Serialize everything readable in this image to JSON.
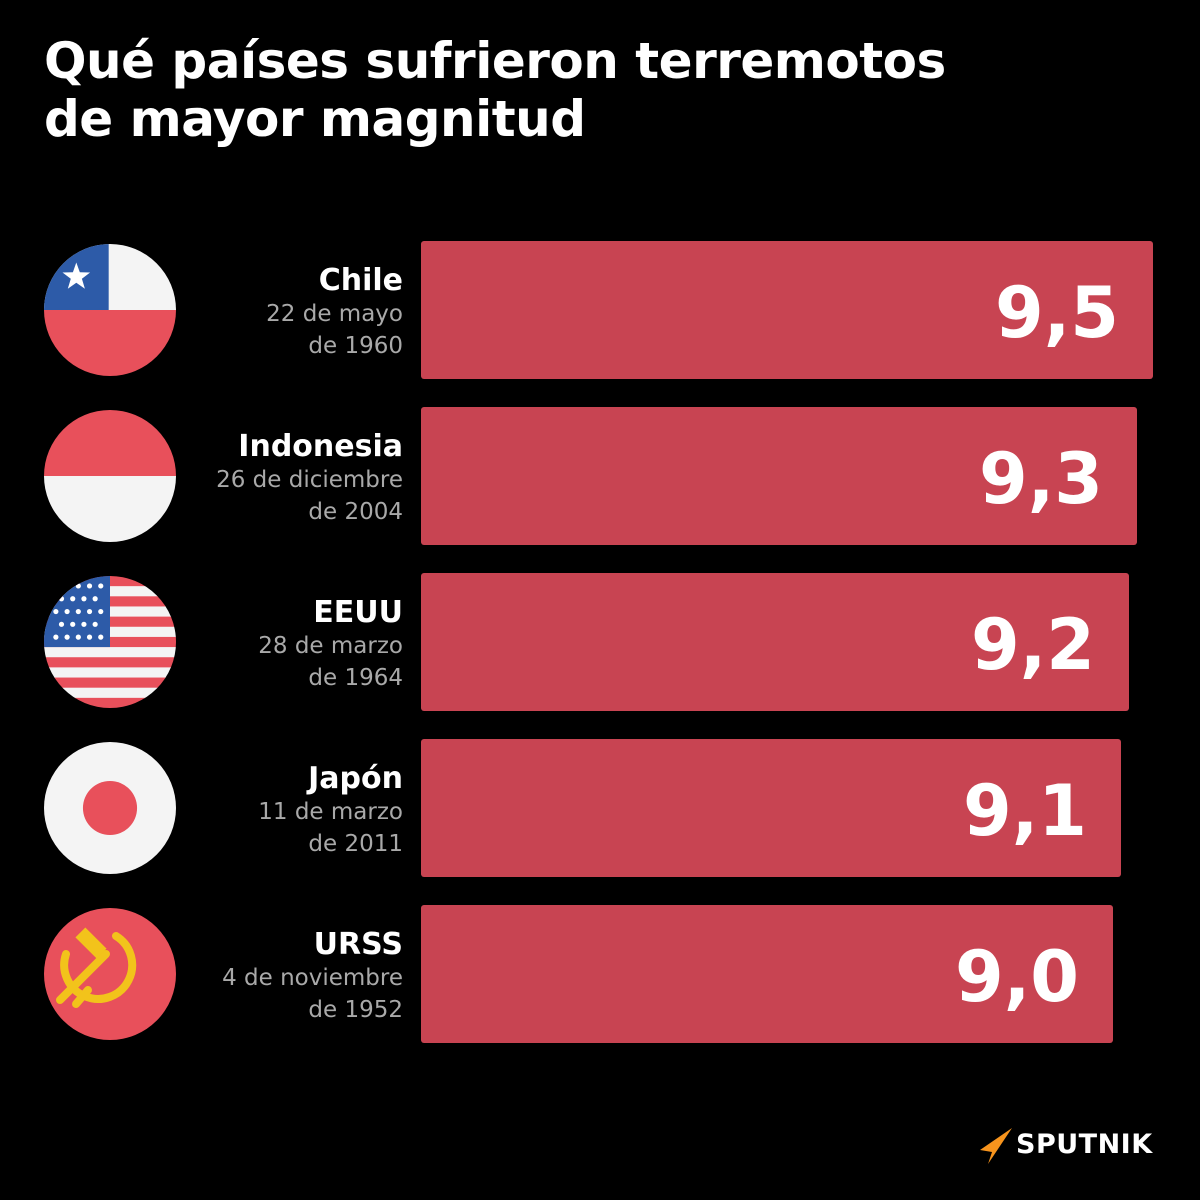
{
  "title": {
    "line1": "Qué países sufrieron terremotos",
    "line2": "de mayor magnitud"
  },
  "brand": {
    "name": "SPUTNIK",
    "accent_color": "#f7941d"
  },
  "colors": {
    "background": "#000000",
    "bar": "#c84452",
    "value_text": "#ffffff",
    "date_text": "#a9a9a9"
  },
  "chart_data": {
    "type": "bar",
    "orientation": "horizontal",
    "categories": [
      "Chile",
      "Indonesia",
      "EEUU",
      "Japón",
      "URSS"
    ],
    "values": [
      9.5,
      9.3,
      9.2,
      9.1,
      9.0
    ],
    "value_labels": [
      "9,5",
      "9,3",
      "9,2",
      "9,1",
      "9,0"
    ],
    "dates": [
      [
        "22 de mayo",
        "de 1960"
      ],
      [
        "26 de diciembre",
        "de 2004"
      ],
      [
        "28 de marzo",
        "de 1964"
      ],
      [
        "11 de marzo",
        "de 2011"
      ],
      [
        "4 de noviembre",
        "de 1952"
      ]
    ],
    "flags": [
      "chile-flag-icon",
      "indonesia-flag-icon",
      "usa-flag-icon",
      "japan-flag-icon",
      "ussr-flag-icon"
    ],
    "title": "Qué países sufrieron terremotos de mayor magnitud",
    "xlabel": "",
    "ylabel": "",
    "grid": false,
    "legend": "none"
  }
}
